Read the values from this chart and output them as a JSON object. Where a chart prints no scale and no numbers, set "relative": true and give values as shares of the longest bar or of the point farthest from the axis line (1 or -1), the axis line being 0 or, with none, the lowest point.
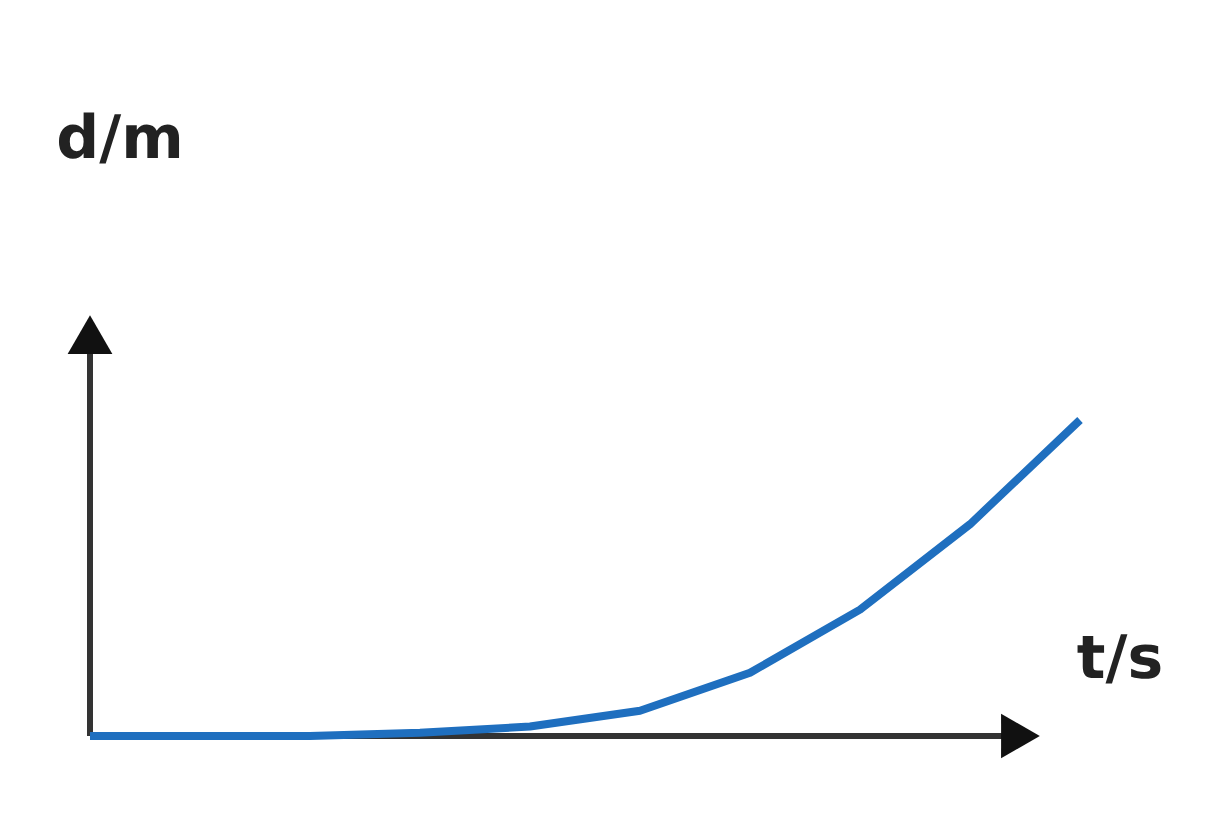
{
  "chart_data": {
    "type": "line",
    "relative": true,
    "xlabel": "t/s",
    "ylabel": "d/m",
    "categories": [
      null,
      null,
      null,
      null,
      null,
      null,
      null,
      null,
      null,
      null
    ],
    "series": [
      {
        "color": "#1f6fbf",
        "values": [
          0,
          0,
          0,
          0.01,
          0.03,
          0.08,
          0.2,
          0.4,
          0.67,
          1
        ]
      }
    ]
  }
}
